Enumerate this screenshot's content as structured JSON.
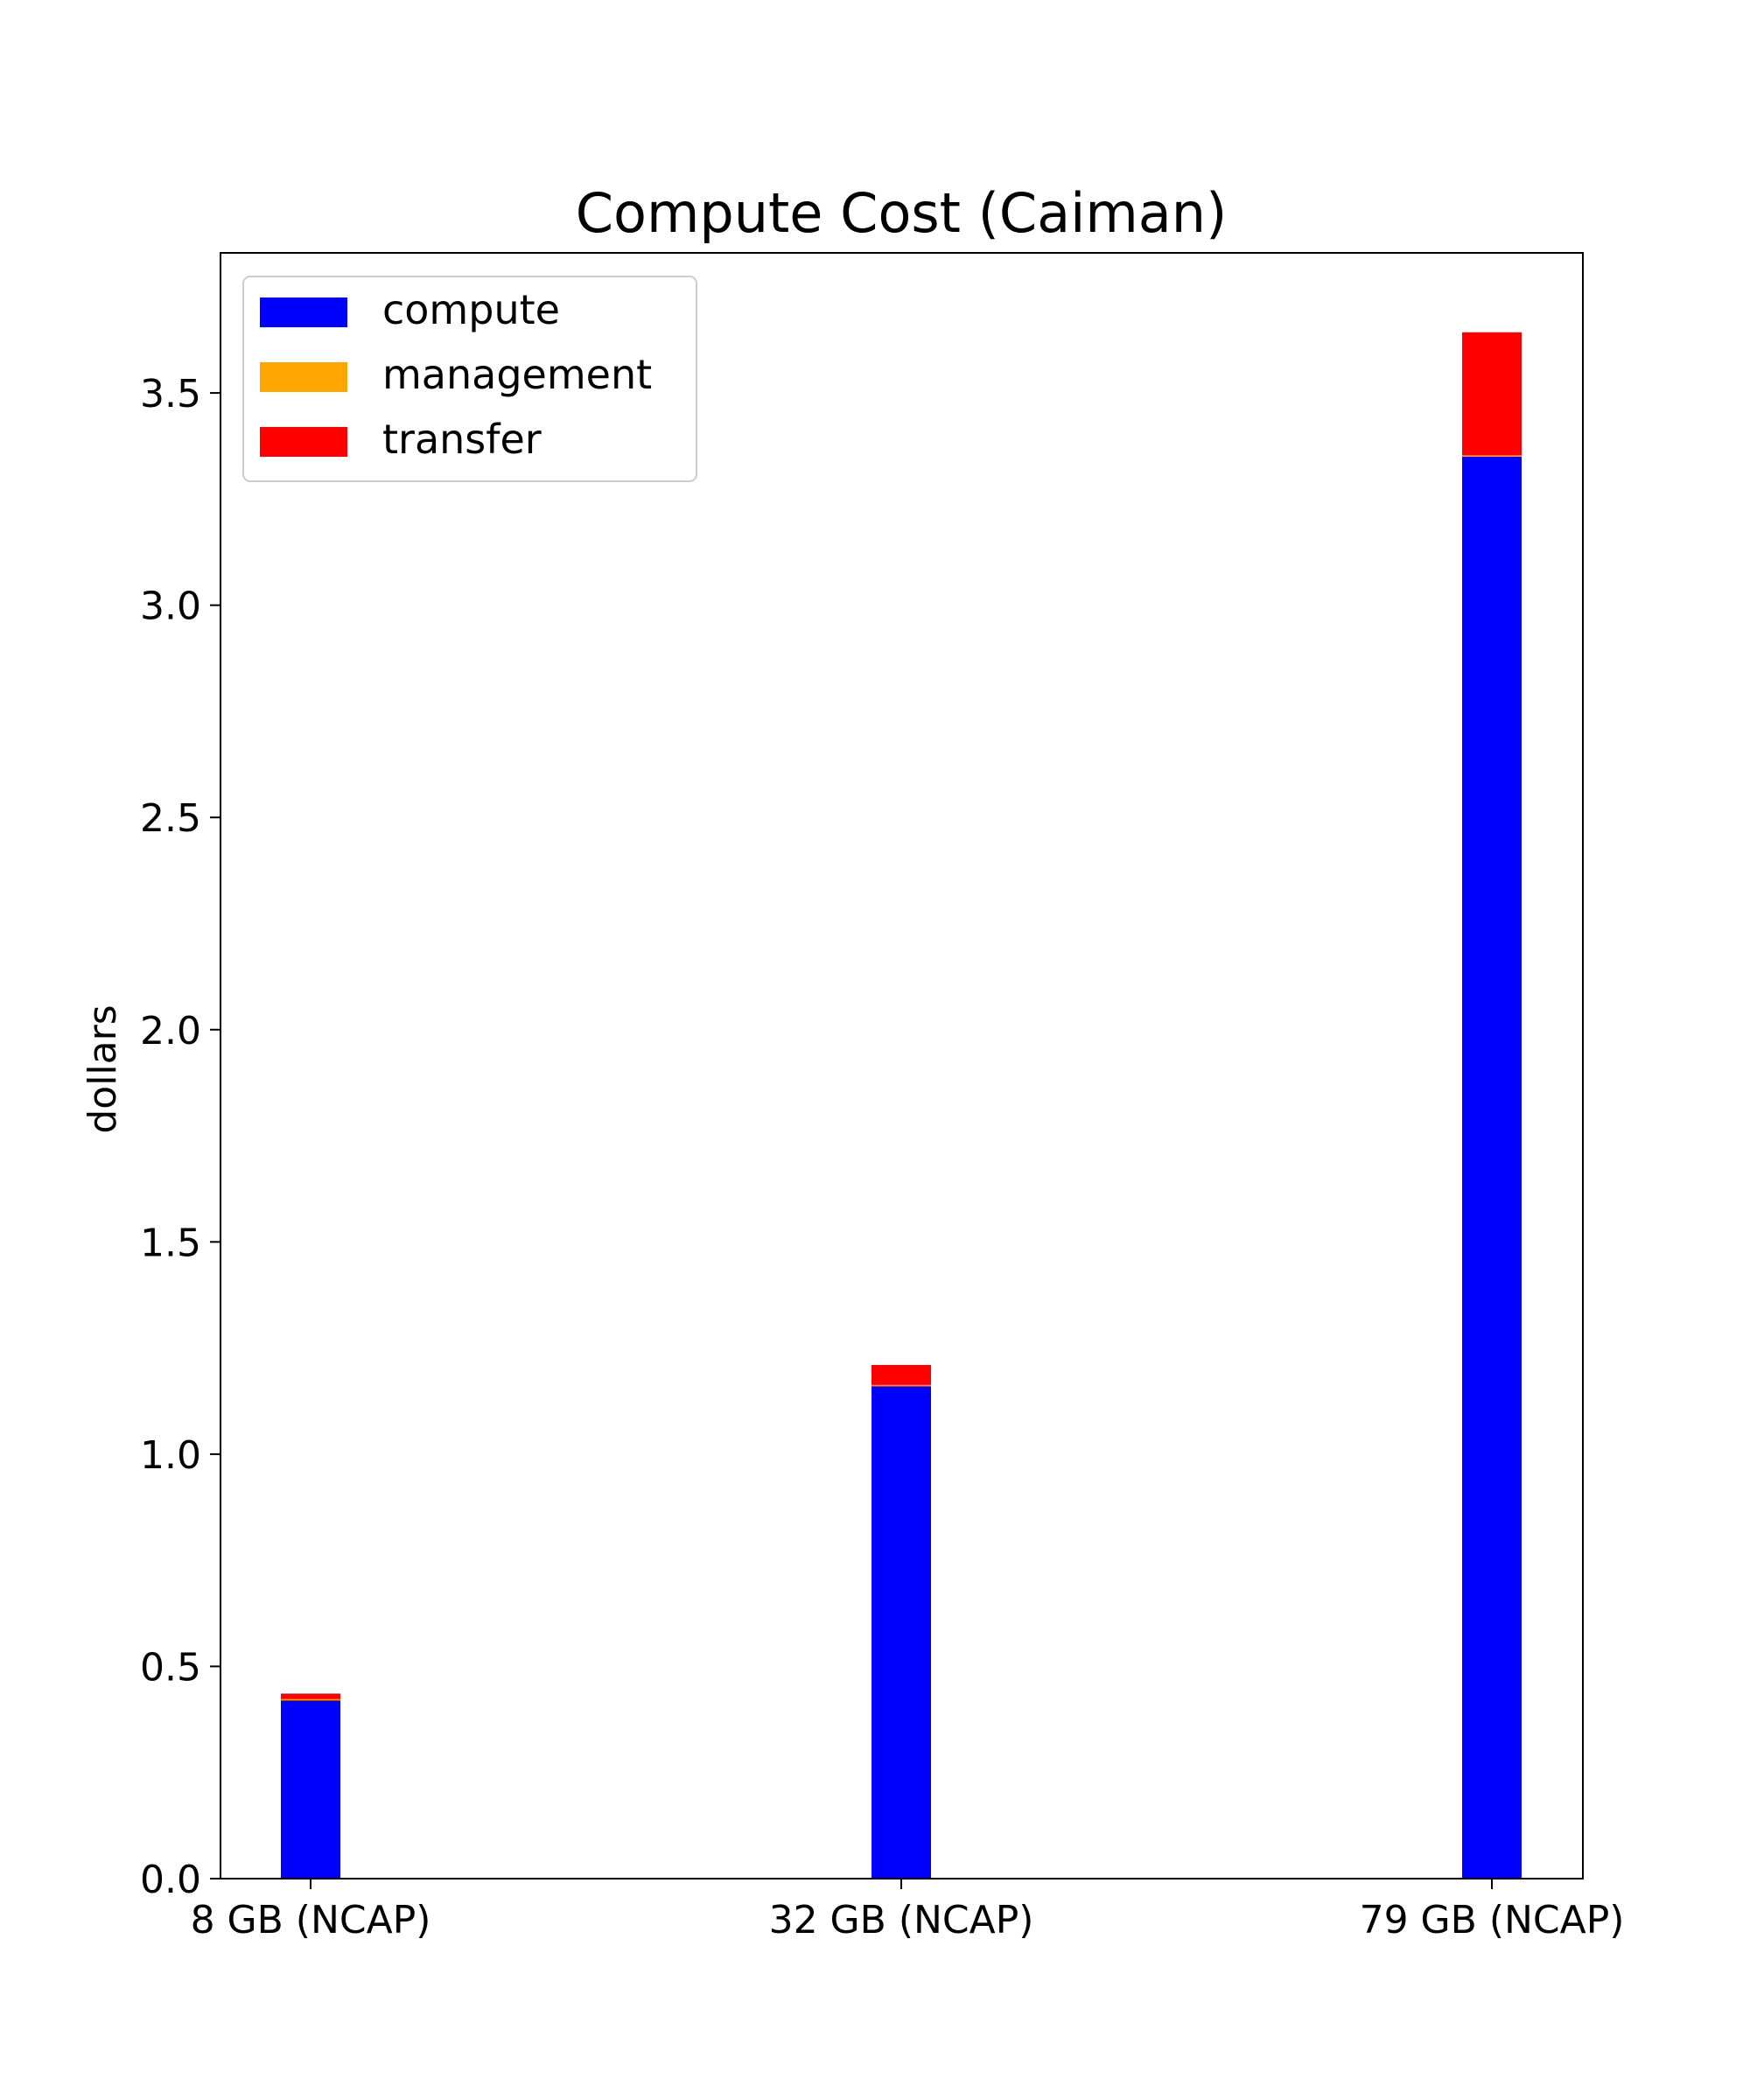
{
  "chart_data": {
    "type": "bar",
    "stacked": true,
    "title": "Compute Cost (Caiman)",
    "xlabel": "",
    "ylabel": "dollars",
    "categories": [
      "8 GB (NCAP)",
      "32 GB (NCAP)",
      "79 GB (NCAP)"
    ],
    "series": [
      {
        "name": "compute",
        "color": "#0000ff",
        "values": [
          0.42,
          1.16,
          3.35
        ]
      },
      {
        "name": "management",
        "color": "#ffa500",
        "values": [
          0.003,
          0.003,
          0.003
        ]
      },
      {
        "name": "transfer",
        "color": "#ff0000",
        "values": [
          0.013,
          0.047,
          0.29
        ]
      }
    ],
    "ylim": [
      0,
      3.83
    ],
    "yticks": [
      0.0,
      0.5,
      1.0,
      1.5,
      2.0,
      2.5,
      3.0,
      3.5
    ],
    "ytick_labels": [
      "0.0",
      "0.5",
      "1.0",
      "1.5",
      "2.0",
      "2.5",
      "3.0",
      "3.5"
    ],
    "legend_position": "upper-left",
    "grid": false
  }
}
